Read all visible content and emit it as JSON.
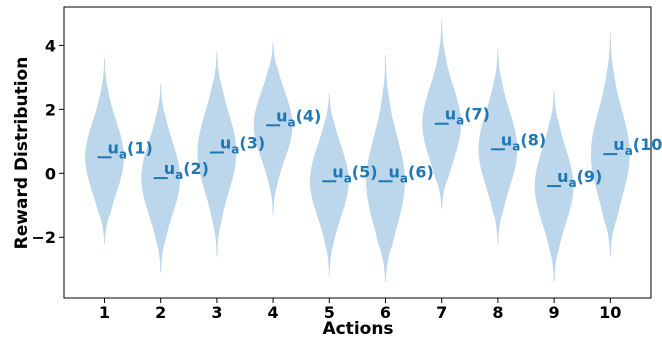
{
  "chart_data": {
    "type": "violin",
    "xlabel": "Actions",
    "ylabel": "Reward Distribution",
    "ylim": [
      -3.9,
      5.2
    ],
    "yticks": [
      -2,
      0,
      2,
      4
    ],
    "ytick_labels": [
      "−2",
      "0",
      "2",
      "4"
    ],
    "grid": false,
    "legend": "none",
    "categories": [
      "1",
      "2",
      "3",
      "4",
      "5",
      "6",
      "7",
      "8",
      "9",
      "10"
    ],
    "means": [
      0.5,
      -0.15,
      0.65,
      1.5,
      -0.25,
      -0.25,
      1.55,
      0.75,
      -0.4,
      0.6
    ],
    "mins": [
      -2.2,
      -3.1,
      -2.6,
      -1.3,
      -3.2,
      -3.4,
      -1.1,
      -2.2,
      -3.4,
      -2.6
    ],
    "maxs": [
      3.6,
      2.8,
      3.8,
      4.1,
      2.5,
      3.7,
      4.8,
      3.9,
      2.6,
      4.4
    ],
    "annotations": [
      {
        "base": "u",
        "sub": "a",
        "arg": "(1)"
      },
      {
        "base": "u",
        "sub": "a",
        "arg": "(2)"
      },
      {
        "base": "u",
        "sub": "a",
        "arg": "(3)"
      },
      {
        "base": "u",
        "sub": "a",
        "arg": "(4)"
      },
      {
        "base": "u",
        "sub": "a",
        "arg": "(5)"
      },
      {
        "base": "u",
        "sub": "a",
        "arg": "(6)"
      },
      {
        "base": "u",
        "sub": "a",
        "arg": "(7)"
      },
      {
        "base": "u",
        "sub": "a",
        "arg": "(8)"
      },
      {
        "base": "u",
        "sub": "a",
        "arg": "(9)"
      },
      {
        "base": "u",
        "sub": "a",
        "arg": "(10)"
      }
    ],
    "violin_color": "#bcd6ec",
    "mean_color": "#1f77b4",
    "annotation_color": "#1f77b4"
  }
}
